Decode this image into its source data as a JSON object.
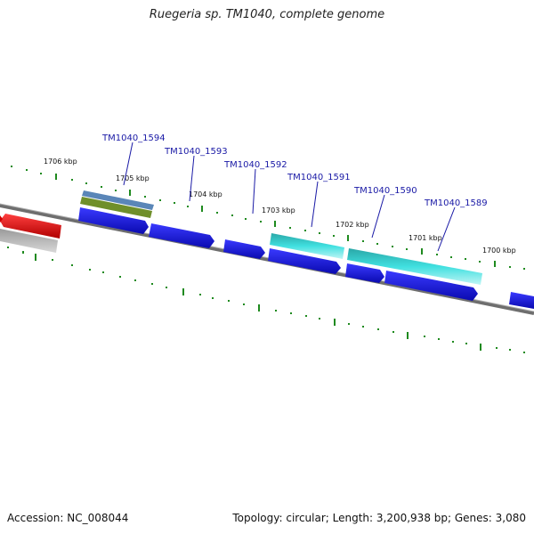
{
  "title": "Ruegeria sp. TM1040, complete genome",
  "footer": {
    "accession": "Accession: NC_008044",
    "summary": "Topology: circular; Length: 3,200,938 bp; Genes: 3,080"
  },
  "ruler_labels": [
    "1706 kbp",
    "1705 kbp",
    "1704 kbp",
    "1703 kbp",
    "1702 kbp",
    "1701 kbp",
    "1700 kbp"
  ],
  "gene_labels": [
    "TM1040_1594",
    "TM1040_1593",
    "TM1040_1592",
    "TM1040_1591",
    "TM1040_1590",
    "TM1040_1589"
  ],
  "colors": {
    "backbone": "#7a7a7a",
    "cds": "#1010e0",
    "highlight": "#20d0d0",
    "rrna": "#e01010",
    "pseudo": "#b0b0b0",
    "tick": "#1f8a1f",
    "feature_blue": "#5a86b8",
    "feature_olive": "#6f8f2a",
    "label": "#1a1aa6"
  }
}
